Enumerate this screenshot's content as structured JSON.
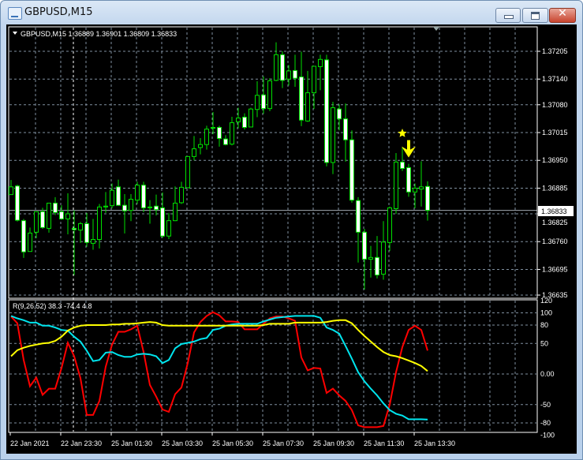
{
  "window": {
    "title": "GBPUSD,M15"
  },
  "chart": {
    "header": "GBPUSD,M15  1.36889 1.36901 1.36809 1.36833",
    "symbol": "GBPUSD",
    "timeframe": "M15",
    "last_ohlc": {
      "open": 1.36889,
      "high": 1.36901,
      "low": 1.36809,
      "close": 1.36833
    },
    "current_price_label": "1.36833",
    "colors": {
      "background": "#000000",
      "bull": "#00e000",
      "bear_body": "#ffffff",
      "grid": "#8090a0",
      "red": "#ff0000",
      "cyan": "#00e5ee",
      "yellow": "#ffff00"
    },
    "price_axis": [
      "1.37205",
      "1.37140",
      "1.37080",
      "1.37015",
      "1.36950",
      "1.36885",
      "1.36825",
      "1.36760",
      "1.36695",
      "1.36635"
    ],
    "time_axis": [
      "22 Jan 2021",
      "22 Jan 23:30",
      "25 Jan 01:30",
      "25 Jan 03:30",
      "25 Jan 05:30",
      "25 Jan 07:30",
      "25 Jan 09:30",
      "25 Jan 11:30",
      "25 Jan 13:30"
    ],
    "markers": [
      {
        "icon": "star-icon",
        "candle": 63
      },
      {
        "icon": "arrow-down-icon",
        "candle": 64
      }
    ],
    "candles": [
      [
        1.3687,
        1.36904,
        1.3687,
        1.36888
      ],
      [
        1.3689,
        1.36893,
        1.36807,
        1.3681
      ],
      [
        1.36809,
        1.36813,
        1.36722,
        1.36736
      ],
      [
        1.36737,
        1.36793,
        1.36737,
        1.3678
      ],
      [
        1.36782,
        1.3683,
        1.36768,
        1.3683
      ],
      [
        1.3683,
        1.36839,
        1.3679,
        1.36793
      ],
      [
        1.36791,
        1.3685,
        1.36781,
        1.3685
      ],
      [
        1.3685,
        1.36864,
        1.36822,
        1.36828
      ],
      [
        1.3683,
        1.36845,
        1.36811,
        1.36813
      ],
      [
        1.36813,
        1.36873,
        1.36777,
        1.36825
      ],
      [
        1.36791,
        1.36833,
        1.36682,
        1.36788
      ],
      [
        1.36787,
        1.36806,
        1.36757,
        1.36802
      ],
      [
        1.36802,
        1.36827,
        1.36748,
        1.36758
      ],
      [
        1.36756,
        1.36813,
        1.36741,
        1.36765
      ],
      [
        1.36765,
        1.36848,
        1.36744,
        1.36841
      ],
      [
        1.36841,
        1.36876,
        1.36827,
        1.36843
      ],
      [
        1.36844,
        1.36896,
        1.36838,
        1.3688
      ],
      [
        1.36888,
        1.36905,
        1.36844,
        1.36845
      ],
      [
        1.36845,
        1.36871,
        1.36779,
        1.36832
      ],
      [
        1.36833,
        1.36871,
        1.36808,
        1.36859
      ],
      [
        1.36857,
        1.369,
        1.36848,
        1.36892
      ],
      [
        1.36892,
        1.369,
        1.36829,
        1.36839
      ],
      [
        1.36839,
        1.36857,
        1.36802,
        1.36841
      ],
      [
        1.36843,
        1.3687,
        1.36821,
        1.36835
      ],
      [
        1.36839,
        1.36875,
        1.36769,
        1.36773
      ],
      [
        1.36773,
        1.36827,
        1.36766,
        1.36809
      ],
      [
        1.36809,
        1.36889,
        1.36808,
        1.3685
      ],
      [
        1.36851,
        1.369,
        1.36848,
        1.36887
      ],
      [
        1.36886,
        1.36959,
        1.36885,
        1.36959
      ],
      [
        1.36959,
        1.37007,
        1.3695,
        1.36977
      ],
      [
        1.3698,
        1.37002,
        1.36964,
        1.36987
      ],
      [
        1.36987,
        1.37031,
        1.36975,
        1.37023
      ],
      [
        1.37025,
        1.37063,
        1.37011,
        1.37027
      ],
      [
        1.37027,
        1.37031,
        1.36982,
        1.37001
      ],
      [
        1.37,
        1.37009,
        1.36985,
        1.36987
      ],
      [
        1.36988,
        1.37052,
        1.36985,
        1.37038
      ],
      [
        1.3704,
        1.37073,
        1.37025,
        1.37049
      ],
      [
        1.37051,
        1.3706,
        1.37022,
        1.37027
      ],
      [
        1.37028,
        1.37073,
        1.37027,
        1.3707
      ],
      [
        1.37069,
        1.37135,
        1.37051,
        1.37102
      ],
      [
        1.37103,
        1.37146,
        1.37059,
        1.37071
      ],
      [
        1.37071,
        1.37142,
        1.37065,
        1.37136
      ],
      [
        1.37137,
        1.37226,
        1.37135,
        1.37197
      ],
      [
        1.37197,
        1.37205,
        1.37119,
        1.37137
      ],
      [
        1.3714,
        1.37173,
        1.37125,
        1.37159
      ],
      [
        1.3716,
        1.37197,
        1.37122,
        1.37142
      ],
      [
        1.37145,
        1.37204,
        1.3703,
        1.37044
      ],
      [
        1.37042,
        1.37159,
        1.3704,
        1.37108
      ],
      [
        1.37108,
        1.3717,
        1.3707,
        1.3717
      ],
      [
        1.37169,
        1.37197,
        1.37114,
        1.37186
      ],
      [
        1.37185,
        1.37197,
        1.36936,
        1.36945
      ],
      [
        1.36945,
        1.37087,
        1.36918,
        1.37073
      ],
      [
        1.3707,
        1.37081,
        1.3702,
        1.37047
      ],
      [
        1.37047,
        1.37083,
        1.36947,
        1.36998
      ],
      [
        1.36998,
        1.3702,
        1.36851,
        1.36857
      ],
      [
        1.36856,
        1.36864,
        1.36711,
        1.36782
      ],
      [
        1.36782,
        1.3679,
        1.36648,
        1.36719
      ],
      [
        1.36719,
        1.3675,
        1.36676,
        1.36723
      ],
      [
        1.36723,
        1.36773,
        1.36674,
        1.36682
      ],
      [
        1.36684,
        1.36808,
        1.36671,
        1.36759
      ],
      [
        1.36758,
        1.36842,
        1.36738,
        1.36839
      ],
      [
        1.36837,
        1.36967,
        1.36825,
        1.36946
      ],
      [
        1.36946,
        1.3698,
        1.36925,
        1.36931
      ],
      [
        1.36933,
        1.36942,
        1.36865,
        1.36876
      ],
      [
        1.36876,
        1.36896,
        1.36838,
        1.36885
      ],
      [
        1.36883,
        1.36948,
        1.36842,
        1.36888
      ],
      [
        1.36889,
        1.36901,
        1.36809,
        1.36833
      ]
    ]
  },
  "indicator": {
    "label": "R(9,26,52) 38.3 -74.4 4.8",
    "axis": [
      "120",
      "100",
      "80",
      "50",
      "0.00",
      "-50",
      "-80",
      "-100"
    ],
    "axis_values": [
      120,
      100,
      80,
      50,
      0,
      -50,
      -80,
      -100
    ],
    "grid_levels": [
      100,
      80,
      50,
      0,
      -50,
      -80
    ],
    "series": [
      {
        "color": "#ff0000",
        "values": [
          94,
          83,
          23,
          -20,
          -6,
          -34,
          -24,
          -24,
          10,
          51,
          29,
          -7,
          -67,
          -67,
          -44,
          12,
          48,
          69,
          69,
          73,
          79,
          36,
          -18,
          -37,
          -58,
          -62,
          -33,
          -22,
          18,
          68,
          85,
          95,
          101,
          96,
          86,
          86,
          85,
          73,
          73,
          73,
          82,
          91,
          94,
          94,
          91,
          87,
          27,
          6,
          10,
          9,
          -31,
          -24,
          -35,
          -44,
          -59,
          -84,
          -87,
          -87,
          -87,
          -85,
          -50,
          3,
          44,
          72,
          79,
          72,
          38.3
        ]
      },
      {
        "color": "#00e5ee",
        "values": [
          95,
          91,
          88,
          84,
          84,
          79,
          79,
          76,
          72,
          71,
          61,
          53,
          38,
          21,
          23,
          35,
          36,
          31,
          28,
          28,
          32,
          33,
          32,
          29,
          18,
          23,
          42,
          49,
          51,
          53,
          57,
          59,
          72,
          74,
          79,
          81,
          82,
          82,
          82,
          82,
          86,
          89,
          92,
          93,
          94,
          95,
          95,
          95,
          95,
          92,
          76,
          72,
          66,
          46,
          25,
          3,
          -12,
          -24,
          -35,
          -48,
          -59,
          -65,
          -68,
          -74,
          -74,
          -74,
          -74.4
        ]
      },
      {
        "color": "#ffff00",
        "values": [
          29,
          39,
          43,
          46,
          48,
          50,
          51,
          54,
          61,
          71,
          76,
          79,
          80,
          80,
          80,
          80,
          81,
          81,
          82,
          82,
          83,
          84,
          85,
          84,
          80,
          79,
          79,
          79,
          79,
          79,
          79,
          79,
          79,
          79,
          79,
          79,
          79,
          79,
          79,
          79,
          80,
          82,
          82,
          82,
          82,
          84,
          84,
          84,
          84,
          84,
          85,
          87,
          88,
          88,
          83,
          72,
          62,
          53,
          44,
          36,
          31,
          29,
          26,
          22,
          18,
          13,
          4.8
        ]
      }
    ]
  }
}
